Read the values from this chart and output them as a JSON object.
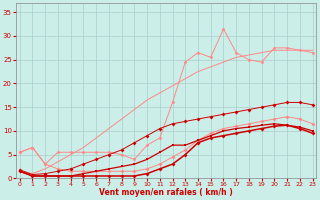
{
  "xlabel": "Vent moyen/en rafales ( km/h )",
  "bg_color": "#cceee8",
  "grid_color": "#aacccc",
  "x_ticks": [
    0,
    1,
    2,
    3,
    4,
    5,
    6,
    7,
    8,
    9,
    10,
    11,
    12,
    13,
    14,
    15,
    16,
    17,
    18,
    19,
    20,
    21,
    22,
    23
  ],
  "ylim": [
    0,
    37
  ],
  "xlim": [
    -0.3,
    23.3
  ],
  "yticks": [
    0,
    5,
    10,
    15,
    20,
    25,
    30,
    35
  ],
  "line_dark1_x": [
    0,
    1,
    2,
    3,
    4,
    5,
    6,
    7,
    8,
    9,
    10,
    11,
    12,
    13,
    14,
    15,
    16,
    17,
    18,
    19,
    20,
    21,
    22,
    23
  ],
  "line_dark1_y": [
    1.5,
    0.5,
    0.5,
    0.5,
    0.5,
    0.5,
    0.5,
    0.5,
    0.5,
    0.5,
    1.0,
    2.0,
    3.0,
    5.0,
    7.5,
    8.5,
    9.0,
    9.5,
    10.0,
    10.5,
    11.0,
    11.2,
    10.5,
    9.5
  ],
  "line_dark1_color": "#cc0000",
  "line_dark2_x": [
    0,
    1,
    2,
    3,
    4,
    5,
    6,
    7,
    8,
    9,
    10,
    11,
    12,
    13,
    14,
    15,
    16,
    17,
    18,
    19,
    20,
    21,
    22,
    23
  ],
  "line_dark2_y": [
    1.5,
    0.5,
    0.5,
    0.5,
    0.5,
    1.0,
    1.5,
    2.0,
    2.5,
    3.0,
    4.0,
    5.5,
    7.0,
    7.0,
    8.0,
    9.0,
    10.0,
    10.5,
    10.8,
    11.2,
    11.5,
    11.2,
    10.8,
    10.0
  ],
  "line_dark2_color": "#cc0000",
  "line_dark3_x": [
    0,
    1,
    2,
    3,
    4,
    5,
    6,
    7,
    8,
    9,
    10,
    11,
    12,
    13,
    14,
    15,
    16,
    17,
    18,
    19,
    20,
    21,
    22,
    23
  ],
  "line_dark3_y": [
    1.8,
    0.8,
    1.0,
    1.5,
    2.0,
    3.0,
    4.0,
    5.0,
    6.0,
    7.5,
    9.0,
    10.5,
    11.5,
    12.0,
    12.5,
    13.0,
    13.5,
    14.0,
    14.5,
    15.0,
    15.5,
    16.0,
    16.0,
    15.5
  ],
  "line_dark3_color": "#cc0000",
  "line_light1_x": [
    0,
    1,
    2,
    3,
    4,
    5,
    6,
    7,
    8,
    9,
    10,
    11,
    12,
    13,
    14,
    15,
    16,
    17,
    18,
    19,
    20,
    21,
    22,
    23
  ],
  "line_light1_y": [
    5.5,
    6.5,
    3.0,
    2.0,
    1.5,
    1.5,
    1.5,
    1.5,
    1.5,
    1.5,
    2.0,
    3.0,
    4.5,
    6.0,
    8.0,
    9.5,
    10.5,
    11.0,
    11.5,
    12.0,
    12.5,
    13.0,
    12.5,
    11.5
  ],
  "line_light1_color": "#ff8888",
  "line_light2_x": [
    0,
    1,
    2,
    3,
    4,
    5,
    6,
    7,
    8,
    9,
    10,
    11,
    12,
    13,
    14,
    15,
    16,
    17,
    18,
    19,
    20,
    21,
    22,
    23
  ],
  "line_light2_y": [
    5.5,
    6.5,
    3.0,
    5.5,
    5.5,
    5.5,
    5.5,
    5.5,
    5.0,
    4.0,
    7.0,
    8.5,
    16.0,
    24.5,
    26.5,
    25.5,
    31.5,
    26.5,
    25.0,
    24.5,
    27.5,
    27.5,
    27.0,
    26.5
  ],
  "line_light2_color": "#ff8888",
  "line_light3_x": [
    0,
    1,
    2,
    3,
    4,
    5,
    6,
    7,
    8,
    9,
    10,
    11,
    12,
    13,
    14,
    15,
    16,
    17,
    18,
    19,
    20,
    21,
    22,
    23
  ],
  "line_light3_y": [
    1.5,
    1.0,
    2.0,
    3.5,
    5.0,
    6.5,
    8.5,
    10.5,
    12.5,
    14.5,
    16.5,
    18.0,
    19.5,
    21.0,
    22.5,
    23.5,
    24.5,
    25.5,
    26.0,
    26.5,
    27.0,
    27.0,
    27.0,
    27.0
  ],
  "line_light3_color": "#ff8888"
}
